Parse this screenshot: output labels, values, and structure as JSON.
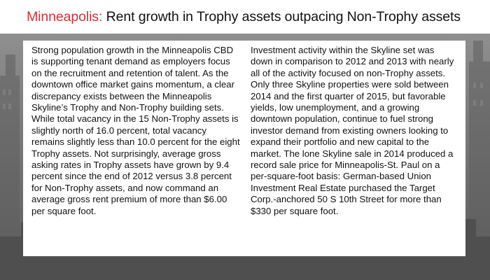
{
  "slide": {
    "title_city": "Minneapolis:",
    "title_rest": " Rent growth in Trophy assets outpacing Non-Trophy assets",
    "left_paragraph": "Strong population growth in the Minneapolis CBD is supporting tenant demand as employers focus on the recruitment and retention of talent. As the downtown office market gains momentum, a clear discrepancy exists between the Minneapolis Skyline’s Trophy and Non-Trophy building sets. While total vacancy in the 15 Non-Trophy assets is slightly north of 16.0 percent, total vacancy remains slightly less than 10.0 percent for the eight Trophy assets. Not surprisingly, average gross asking rates in Trophy assets have grown by 9.4 percent since the end of 2012 versus 3.8 percent for Non-Trophy assets, and now command an average gross rent premium of more than $6.00 per square foot.",
    "right_paragraph": "Investment activity within the Skyline set was down in comparison to 2012 and 2013 with nearly all of the activity focused on non-Trophy assets. Only three Skyline properties were sold between 2014 and the first quarter of 2015, but favorable yields, low unemployment, and a growing downtown population, continue to fuel strong investor demand from existing owners looking to expand their portfolio and new capital to the market. The lone Skyline sale in 2014 produced a record sale price for Minneapolis-St. Paul on a per-square-foot basis: German-based Union Investment Real Estate purchased the Target Corp.-anchored 50 S 10th Street for more than $330 per square foot."
  },
  "colors": {
    "accent": "#d0323a",
    "text": "#111111",
    "background": "#7a7a7a"
  }
}
